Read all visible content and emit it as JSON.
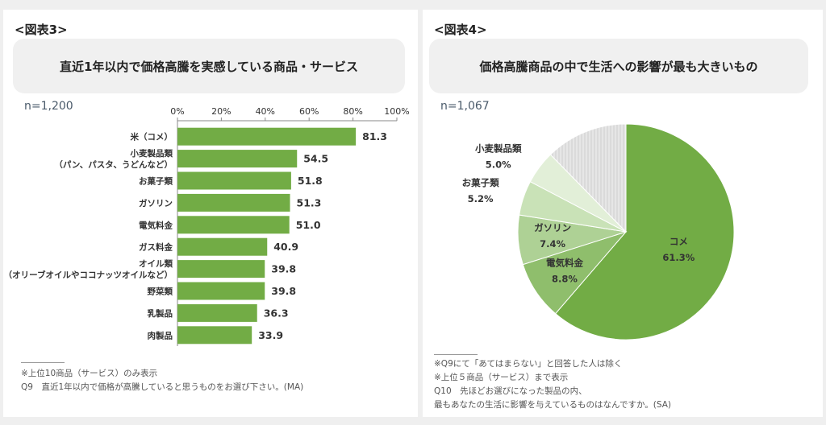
{
  "left": {
    "figure_label": "<図表3>",
    "title": "直近1年以内で価格高騰を実感している商品・サービス",
    "n": "n=1,200",
    "notes": [
      "※上位10商品（サービス）のみ表示",
      "Q9　直近1年以内で価格が高騰していると思うものをお選び下さい。(MA)"
    ]
  },
  "right": {
    "figure_label": "<図表4>",
    "title": "価格高騰商品の中で生活への影響が最も大きいもの",
    "n": "n=1,067",
    "notes": [
      "※Q9にて「あてはまらない」と回答した人は除く",
      "※上位５商品（サービス）まで表示",
      "Q10　先ほどお選びになった製品の内、",
      "最もあなたの生活に影響を与えているものはなんですか。(SA)"
    ]
  },
  "chart_data": [
    {
      "type": "bar",
      "orientation": "horizontal",
      "categories": [
        [
          "米（コメ）"
        ],
        [
          "小麦製品類",
          "（パン、パスタ、うどんなど）"
        ],
        [
          "お菓子類"
        ],
        [
          "ガソリン"
        ],
        [
          "電気料金"
        ],
        [
          "ガス料金"
        ],
        [
          "オイル類",
          "（オリーブオイルやココナッツオイルなど）"
        ],
        [
          "野菜類"
        ],
        [
          "乳製品"
        ],
        [
          "肉製品"
        ]
      ],
      "values": [
        81.3,
        54.5,
        51.8,
        51.3,
        51.0,
        40.9,
        39.8,
        39.8,
        36.3,
        33.9
      ],
      "value_labels": [
        "81.3",
        "54.5",
        "51.8",
        "51.3",
        "51.0",
        "40.9",
        "39.8",
        "39.8",
        "36.3",
        "33.9"
      ],
      "xlim": [
        0,
        100
      ],
      "ticks": [
        0,
        20,
        40,
        60,
        80,
        100
      ],
      "tick_labels": [
        "0%",
        "20%",
        "40%",
        "60%",
        "80%",
        "100%"
      ],
      "axis_position": "top",
      "grid": false,
      "bar_color": "#72ac45"
    },
    {
      "type": "pie",
      "slices": [
        {
          "label": "コメ",
          "value": 61.3,
          "value_label": "61.3%",
          "color": "#72ac45"
        },
        {
          "label": "電気料金",
          "value": 8.8,
          "value_label": "8.8%",
          "color": "#8fbe6c"
        },
        {
          "label": "ガソリン",
          "value": 7.4,
          "value_label": "7.4%",
          "color": "#aed195"
        },
        {
          "label": "お菓子類",
          "value": 5.2,
          "value_label": "5.2%",
          "color": "#c9e2b7"
        },
        {
          "label": "小麦製品類",
          "value": 5.0,
          "value_label": "5.0%",
          "color": "#e2efd8"
        },
        {
          "label": "",
          "value": 12.3,
          "value_label": "",
          "color": "#e4e4e4",
          "hatched": true
        }
      ],
      "start": "12 o'clock",
      "direction": "clockwise"
    }
  ]
}
